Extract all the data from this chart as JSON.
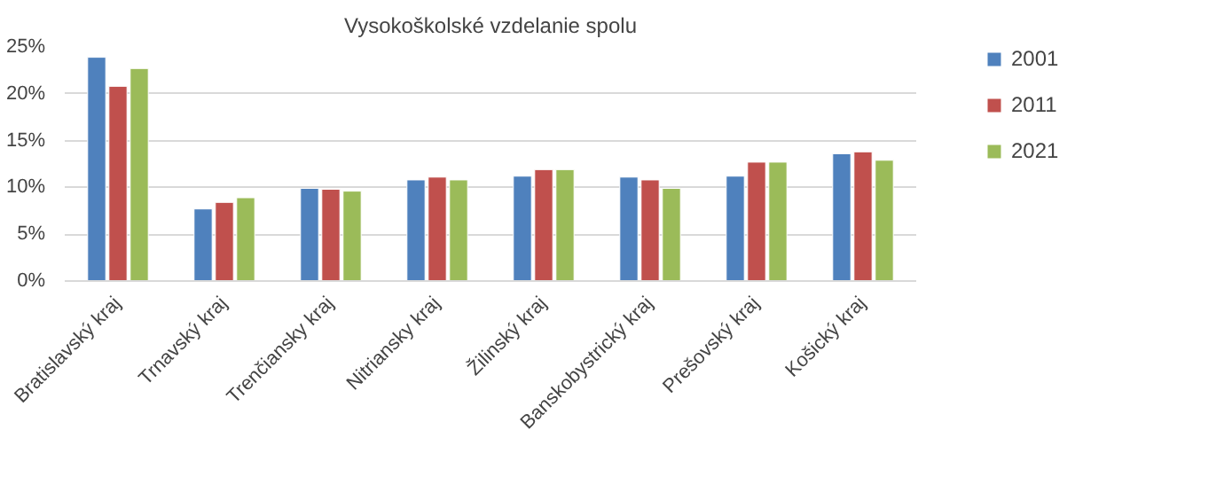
{
  "chart_data": {
    "type": "bar",
    "title": "Vysokoškolské vzdelanie spolu",
    "categories": [
      "Bratislavský kraj",
      "Trnavský kraj",
      "Trenčiansky kraj",
      "Nitriansky kraj",
      "Žilinský kraj",
      "Banskobystrický kraj",
      "Prešovský kraj",
      "Košický kraj"
    ],
    "series": [
      {
        "name": "2001",
        "color": "#4f81bd",
        "values": [
          23.9,
          7.7,
          9.9,
          10.8,
          11.2,
          11.1,
          11.2,
          13.6
        ]
      },
      {
        "name": "2011",
        "color": "#c0504d",
        "values": [
          20.8,
          8.4,
          9.8,
          11.1,
          11.9,
          10.8,
          12.7,
          13.8
        ]
      },
      {
        "name": "2021",
        "color": "#9bbb59",
        "values": [
          22.7,
          8.9,
          9.6,
          10.8,
          11.9,
          9.9,
          12.7,
          12.9
        ]
      }
    ],
    "ylim": [
      0,
      25
    ],
    "yticks": [
      {
        "value": 0,
        "label": "0%"
      },
      {
        "value": 5,
        "label": "5%"
      },
      {
        "value": 10,
        "label": "10%"
      },
      {
        "value": 15,
        "label": "15%"
      },
      {
        "value": 20,
        "label": "20%"
      },
      {
        "value": 25,
        "label": "25%"
      }
    ],
    "grid": "y",
    "legend": "right"
  }
}
